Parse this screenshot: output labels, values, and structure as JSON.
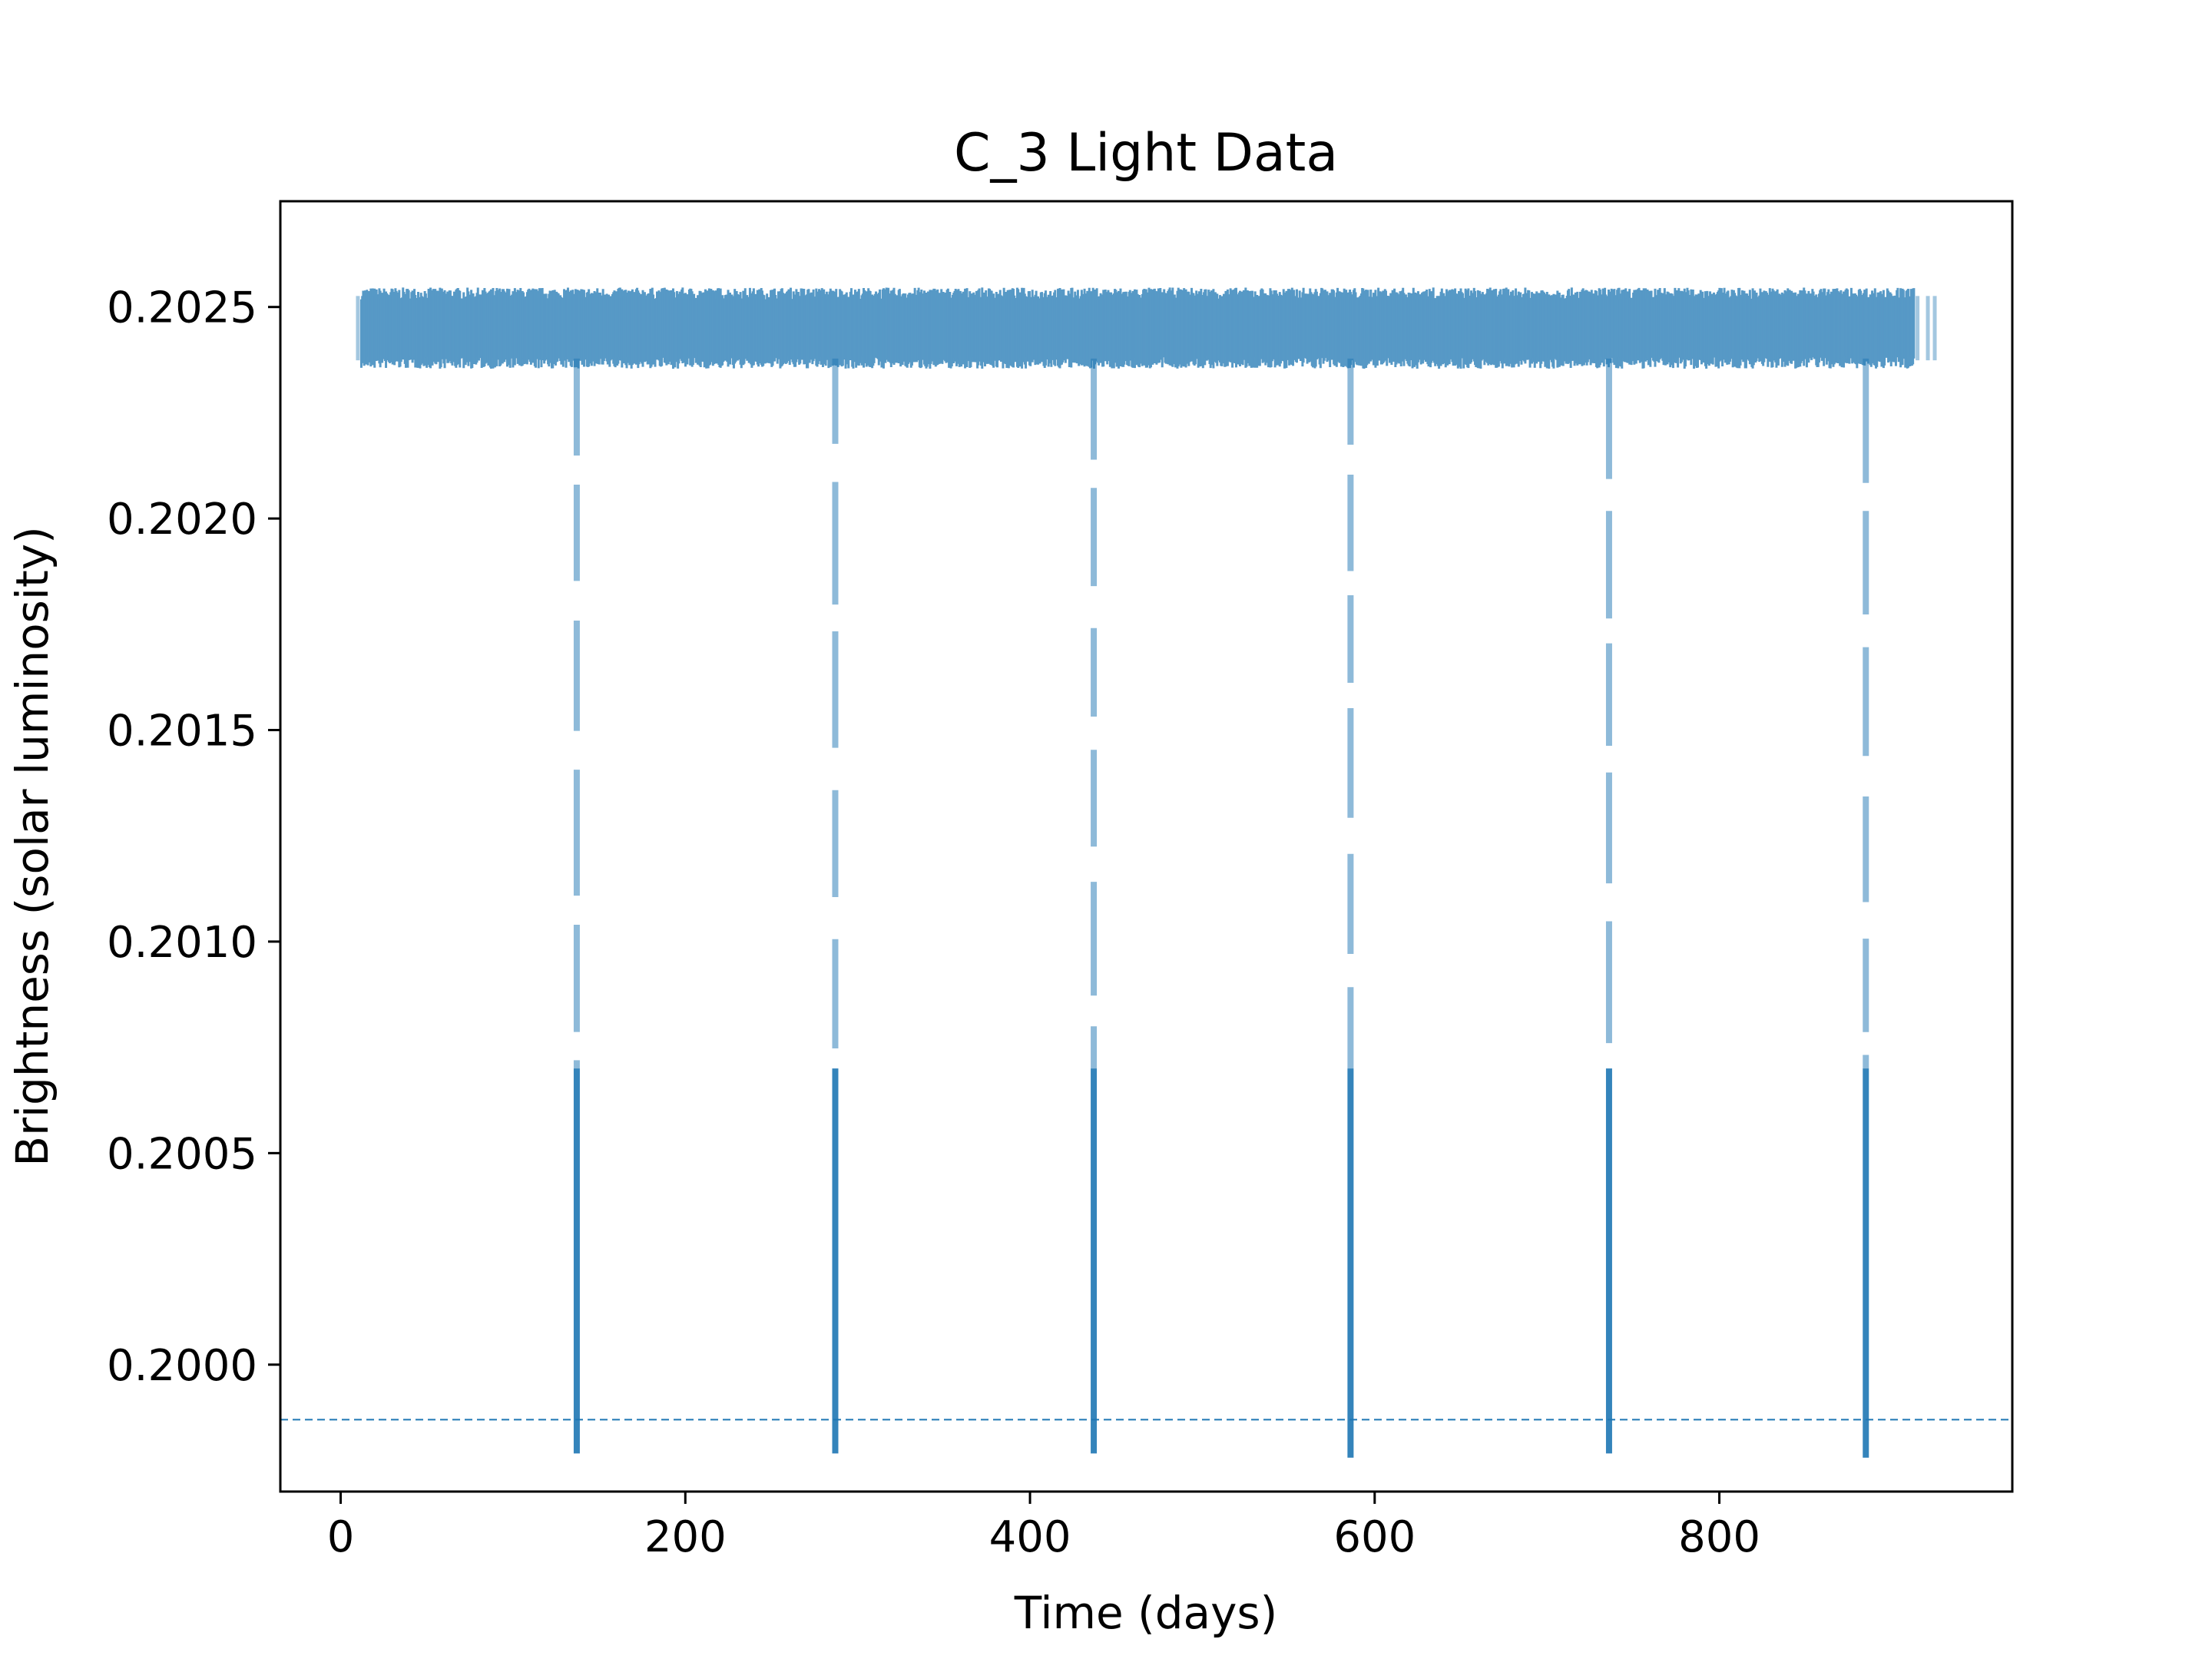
{
  "chart_data": {
    "type": "scatter",
    "title": "C_3 Light Data",
    "xlabel": "Time (days)",
    "ylabel": "Brightness (solar luminosity)",
    "xlim": [
      -35,
      970
    ],
    "ylim": [
      0.1997,
      0.20275
    ],
    "x_ticks": [
      0,
      200,
      400,
      600,
      800
    ],
    "x_tick_labels": [
      "0",
      "200",
      "400",
      "600",
      "800"
    ],
    "y_ticks": [
      0.2,
      0.2005,
      0.201,
      0.2015,
      0.202,
      0.2025
    ],
    "y_tick_labels": [
      "0.2000",
      "0.2005",
      "0.2010",
      "0.2015",
      "0.2020",
      "0.2025"
    ],
    "grid": false,
    "legend": "none",
    "series_color": "#1f77b4",
    "observation_span_days": [
      10,
      925
    ],
    "baseline_brightness": 0.20245,
    "baseline_scatter": 8e-05,
    "threshold_line": {
      "y": 0.19987,
      "style": "dashed",
      "color": "#1f77b4"
    },
    "transit_dips": [
      {
        "time": 137,
        "min_brightness": 0.19979
      },
      {
        "time": 287,
        "min_brightness": 0.19979
      },
      {
        "time": 437,
        "min_brightness": 0.19979
      },
      {
        "time": 586,
        "min_brightness": 0.19978
      },
      {
        "time": 736,
        "min_brightness": 0.19979
      },
      {
        "time": 885,
        "min_brightness": 0.19978
      }
    ]
  }
}
